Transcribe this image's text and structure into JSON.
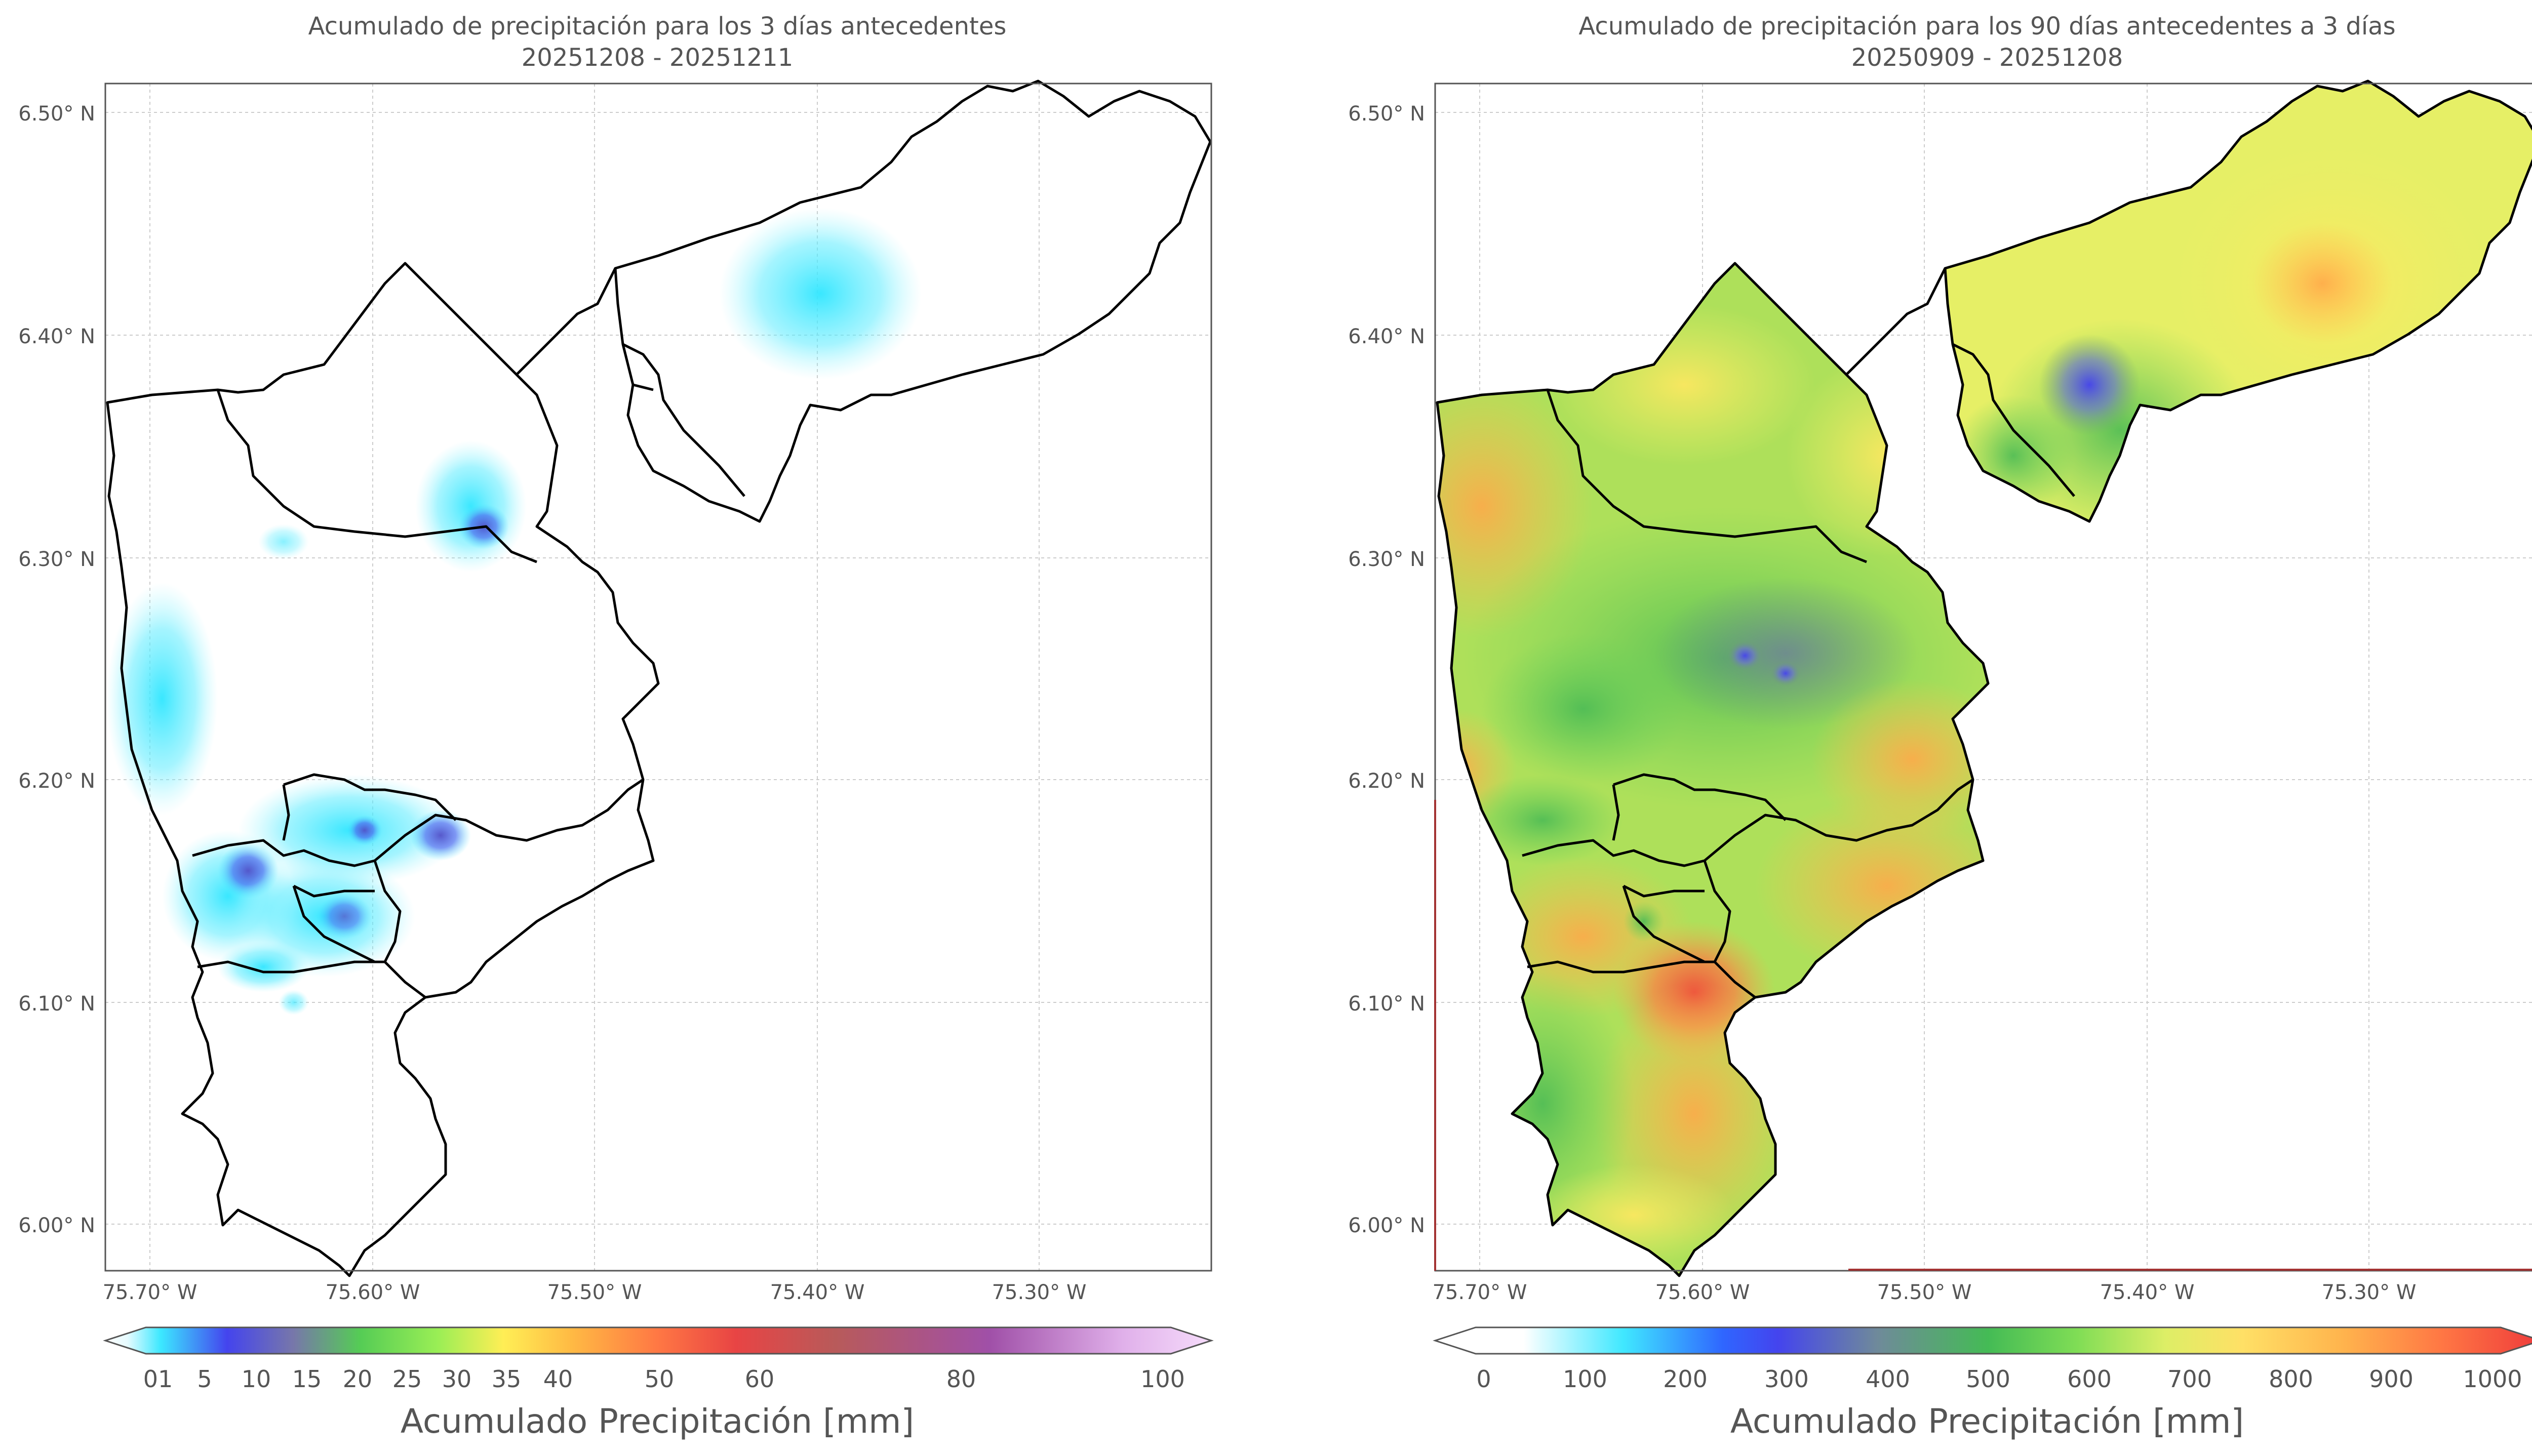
{
  "panels": [
    {
      "title_line1": "Acumulado de precipitación para los 3 días antecedentes",
      "title_line2": "20251208 - 20251211",
      "colorbar": {
        "label": "Acumulado Precipitación [mm]",
        "ticks": [
          "01",
          "5",
          "10",
          "15",
          "20",
          "25",
          "30",
          "35",
          "40",
          "50",
          "60",
          "80",
          "100"
        ]
      }
    },
    {
      "title_line1": "Acumulado de precipitación para los 90 días antecedentes a 3 días",
      "title_line2": "20250909 - 20251208",
      "colorbar": {
        "label": "Acumulado Precipitación [mm]",
        "ticks": [
          "0",
          "100",
          "200",
          "300",
          "400",
          "500",
          "600",
          "700",
          "800",
          "900",
          "1000"
        ]
      }
    }
  ],
  "axes": {
    "lat_labels": [
      "6.50° N",
      "6.40° N",
      "6.30° N",
      "6.20° N",
      "6.10° N",
      "6.00° N"
    ],
    "lon_labels": [
      "75.70° W",
      "75.60° W",
      "75.50° W",
      "75.40° W",
      "75.30° W"
    ]
  },
  "colors": {
    "frame": "#555555",
    "grid": "#cccccc",
    "boundary": "#000000"
  }
}
